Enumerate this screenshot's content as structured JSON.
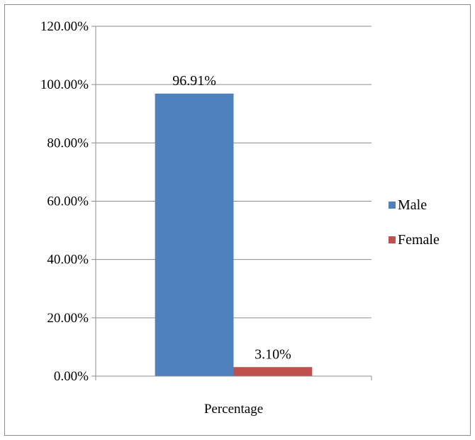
{
  "chart_data": {
    "type": "bar",
    "categories": [
      "Percentage"
    ],
    "series": [
      {
        "name": "Male",
        "values": [
          96.91
        ],
        "color": "#4f81bd",
        "data_label": "96.91%"
      },
      {
        "name": "Female",
        "values": [
          3.1
        ],
        "color": "#c0504d",
        "data_label": "3.10%"
      }
    ],
    "y_ticks": [
      "0.00%",
      "20.00%",
      "40.00%",
      "60.00%",
      "80.00%",
      "100.00%",
      "120.00%"
    ],
    "ylim": [
      0,
      120
    ],
    "grid": true,
    "legend_position": "right"
  }
}
